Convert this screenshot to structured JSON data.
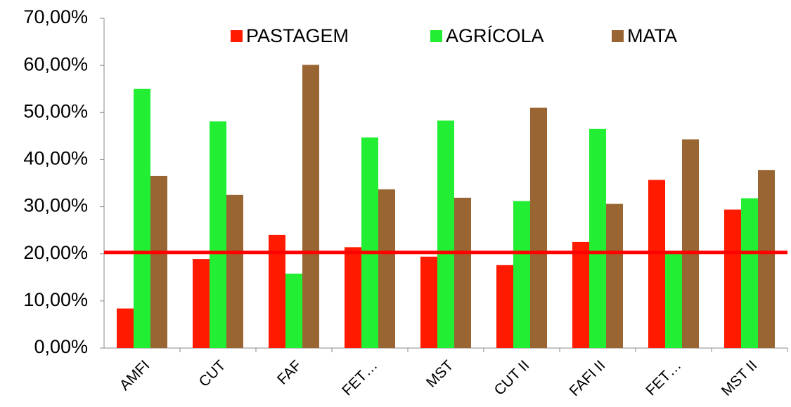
{
  "chart_data": {
    "type": "bar",
    "categories": [
      "AMFI",
      "CUT",
      "FAF",
      "FET…",
      "MST",
      "CUT II",
      "FAFI II",
      "FET…",
      "MST II"
    ],
    "series": [
      {
        "name": "PASTAGEM",
        "color": "#ff1a00",
        "values": [
          8.4,
          18.9,
          24.0,
          21.4,
          19.4,
          17.6,
          22.5,
          35.7,
          29.4
        ]
      },
      {
        "name": "AGRÍCOLA",
        "color": "#22ee33",
        "values": [
          55.0,
          48.1,
          15.8,
          44.7,
          48.3,
          31.2,
          46.5,
          20.0,
          31.8
        ]
      },
      {
        "name": "MATA",
        "color": "#996633",
        "values": [
          36.5,
          32.5,
          60.1,
          33.7,
          31.9,
          51.0,
          30.6,
          44.3,
          37.8
        ]
      }
    ],
    "reference_line": {
      "value": 20.3,
      "color": "#ff0000"
    },
    "ylim": [
      0,
      70
    ],
    "yticks": [
      {
        "value": 0,
        "label": "0,00%"
      },
      {
        "value": 10,
        "label": "10,00%"
      },
      {
        "value": 20,
        "label": "20,00%"
      },
      {
        "value": 30,
        "label": "30,00%"
      },
      {
        "value": 40,
        "label": "40,00%"
      },
      {
        "value": 50,
        "label": "50,00%"
      },
      {
        "value": 60,
        "label": "60,00%"
      },
      {
        "value": 70,
        "label": "70,00%"
      }
    ],
    "legend": "top"
  }
}
